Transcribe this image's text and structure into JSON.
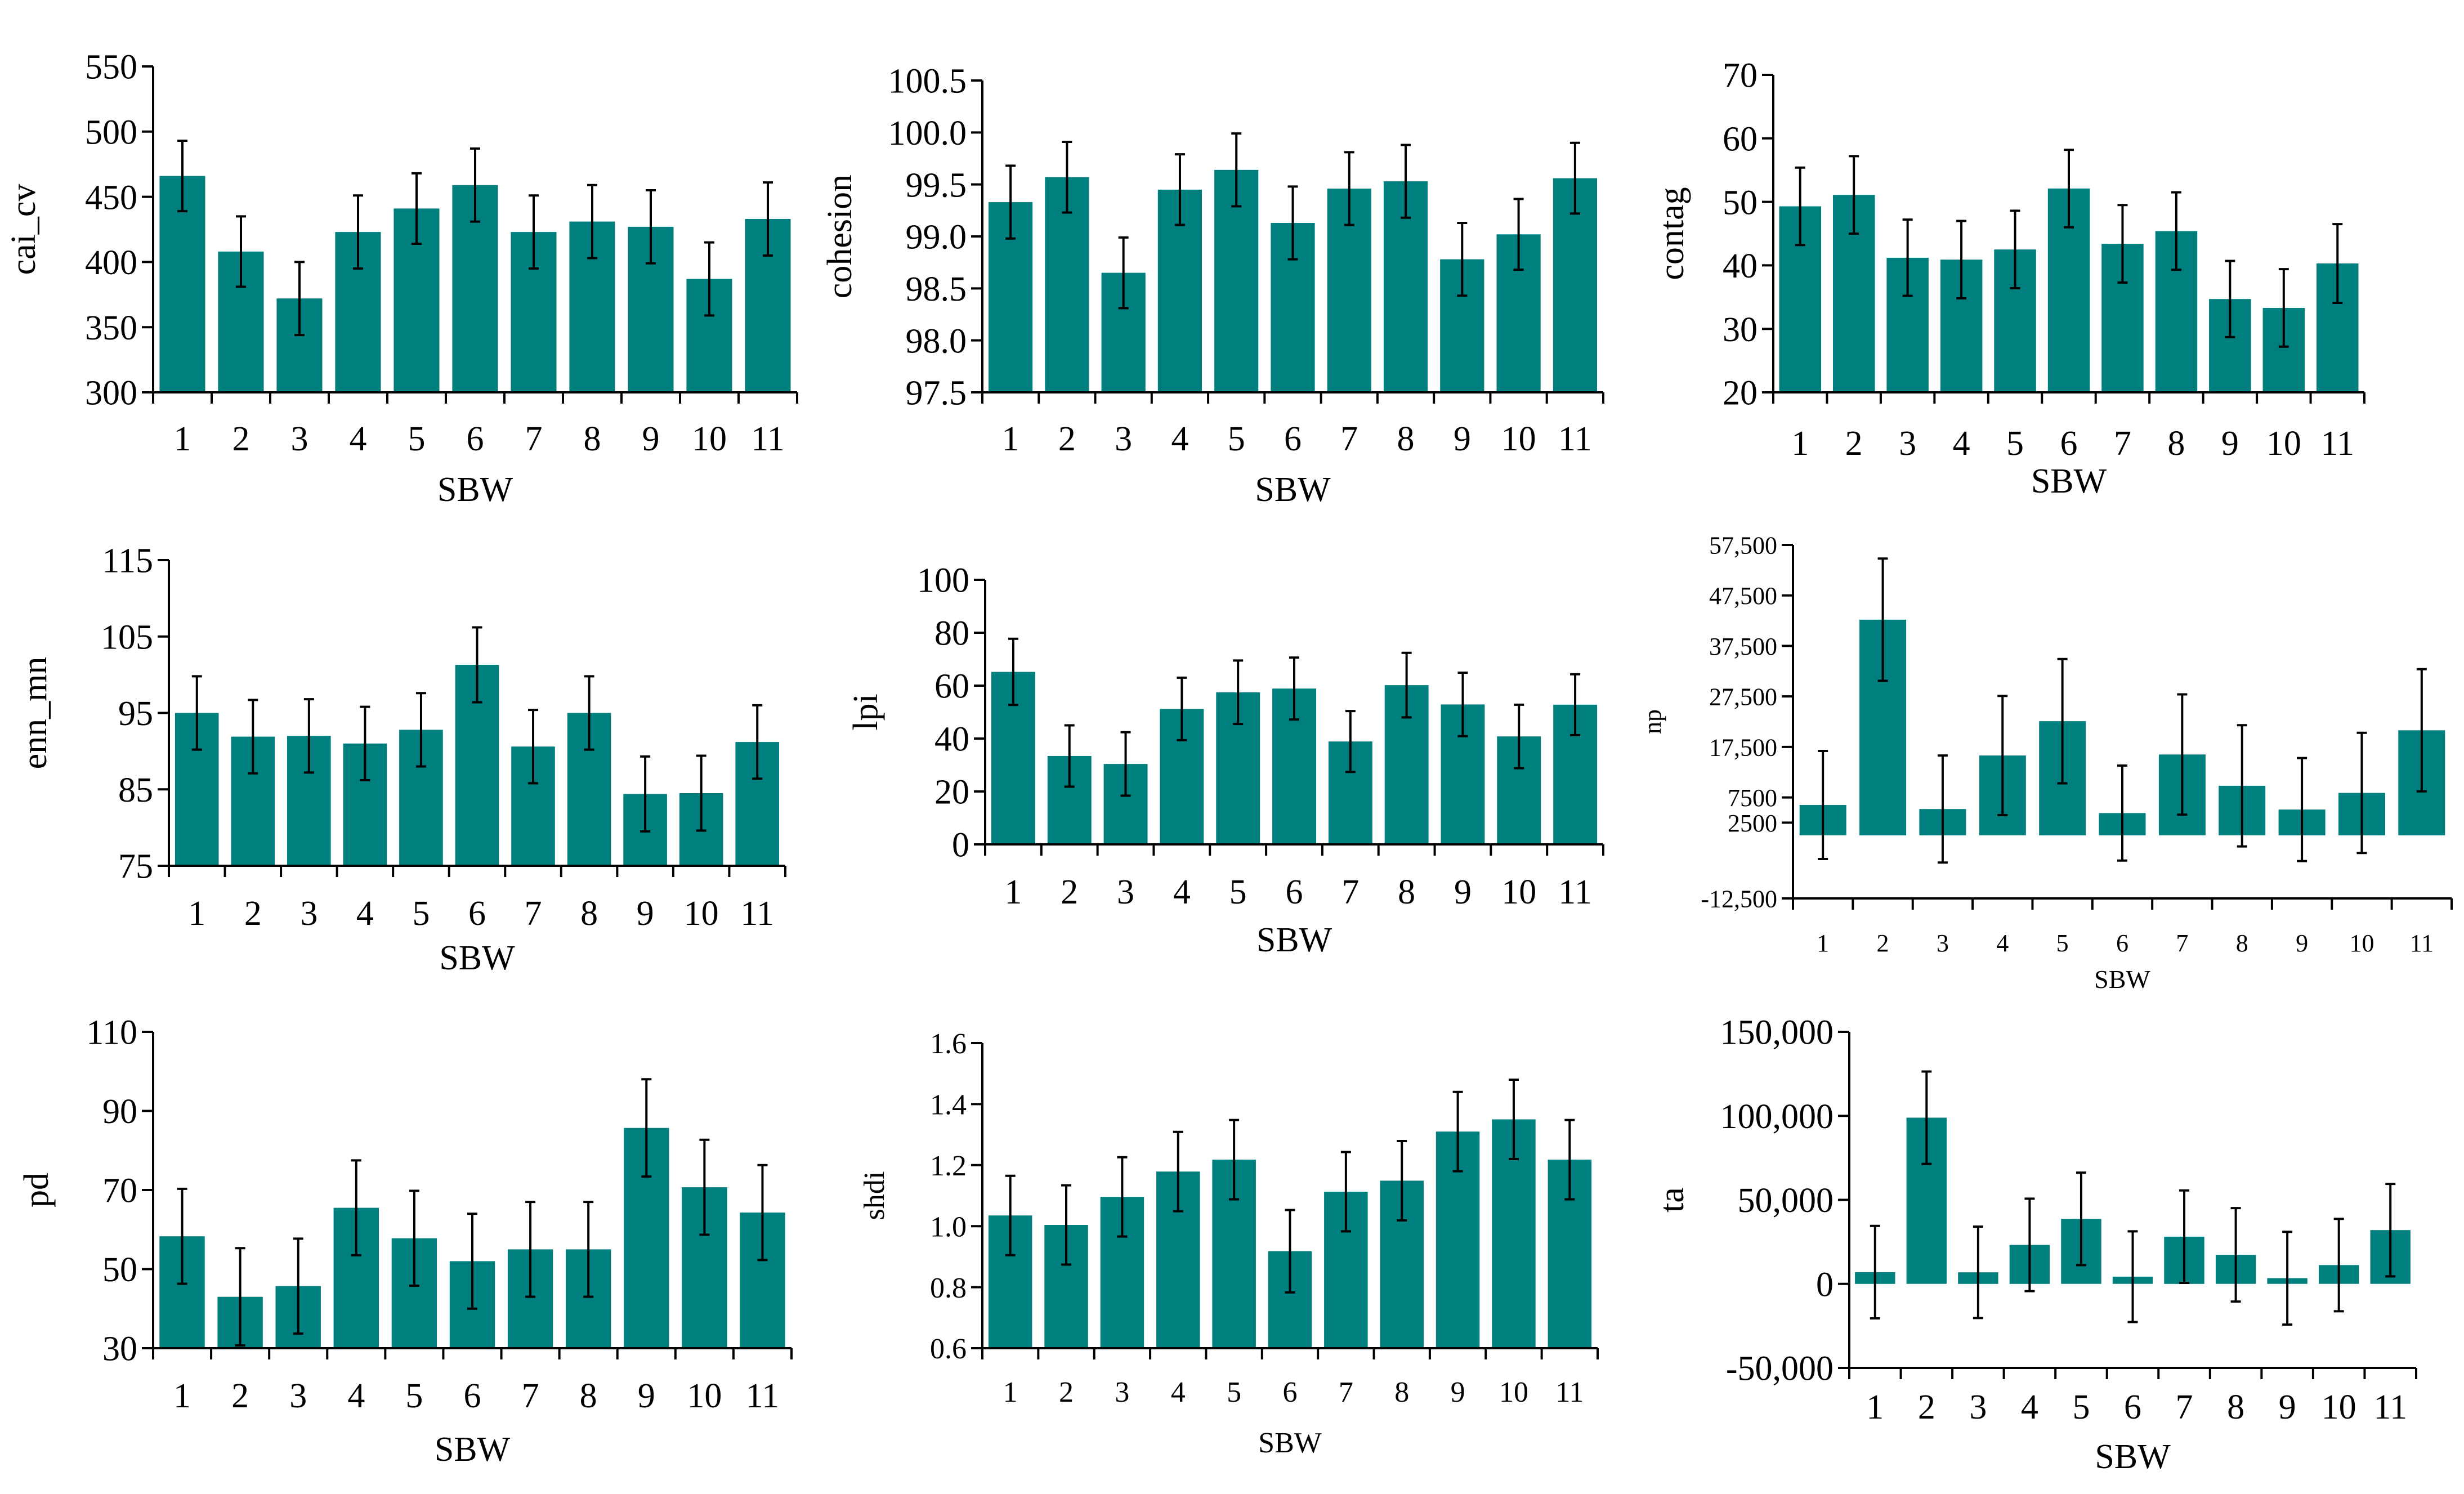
{
  "colors": {
    "bar": "#007f7f",
    "axis": "#000000",
    "text": "#000000"
  },
  "chart_data": [
    {
      "type": "bar",
      "title": "",
      "xlabel": "SBW",
      "ylabel": "cai_cv",
      "categories": [
        "1",
        "2",
        "3",
        "4",
        "5",
        "6",
        "7",
        "8",
        "9",
        "10",
        "11"
      ],
      "values": [
        466,
        408,
        372,
        423,
        441,
        459,
        423,
        431,
        427,
        387,
        433
      ],
      "error": [
        27,
        27,
        28,
        28,
        27,
        28,
        28,
        28,
        28,
        28,
        28
      ],
      "ylim": [
        300,
        550
      ],
      "yticks": [
        300,
        350,
        400,
        450,
        500,
        550
      ],
      "ytick_labels": [
        "300",
        "350",
        "400",
        "450",
        "500",
        "550"
      ],
      "grid": false
    },
    {
      "type": "bar",
      "title": "",
      "xlabel": "SBW",
      "ylabel": "cohesion",
      "categories": [
        "1",
        "2",
        "3",
        "4",
        "5",
        "6",
        "7",
        "8",
        "9",
        "10",
        "11"
      ],
      "values": [
        99.33,
        99.57,
        98.65,
        99.45,
        99.64,
        99.13,
        99.46,
        99.53,
        98.78,
        99.02,
        99.56
      ],
      "error": [
        0.35,
        0.34,
        0.34,
        0.34,
        0.35,
        0.35,
        0.35,
        0.35,
        0.35,
        0.34,
        0.34
      ],
      "ylim": [
        97.5,
        100.5
      ],
      "yticks": [
        97.5,
        98.0,
        98.5,
        99.0,
        99.5,
        100.0,
        100.5
      ],
      "ytick_labels": [
        "97.5",
        "98.0",
        "98.5",
        "99.0",
        "99.5",
        "100.0",
        "100.5"
      ],
      "grid": false
    },
    {
      "type": "bar",
      "title": "",
      "xlabel": "SBW",
      "ylabel": "contag",
      "categories": [
        "1",
        "2",
        "3",
        "4",
        "5",
        "6",
        "7",
        "8",
        "9",
        "10",
        "11"
      ],
      "values": [
        49.3,
        51.1,
        41.2,
        40.9,
        42.5,
        52.1,
        43.4,
        45.4,
        34.7,
        33.3,
        40.3
      ],
      "error": [
        6.1,
        6.1,
        6.0,
        6.1,
        6.1,
        6.1,
        6.1,
        6.1,
        6.0,
        6.1,
        6.2
      ],
      "ylim": [
        20,
        70
      ],
      "yticks": [
        20,
        30,
        40,
        50,
        60,
        70
      ],
      "ytick_labels": [
        "20",
        "30",
        "40",
        "50",
        "60",
        "70"
      ],
      "grid": false
    },
    {
      "type": "bar",
      "title": "",
      "xlabel": "SBW",
      "ylabel": "enn_mn",
      "categories": [
        "1",
        "2",
        "3",
        "4",
        "5",
        "6",
        "7",
        "8",
        "9",
        "10",
        "11"
      ],
      "values": [
        95.0,
        91.9,
        92.0,
        91.0,
        92.8,
        101.3,
        90.6,
        95.0,
        84.4,
        84.5,
        91.2
      ],
      "error": [
        4.8,
        4.8,
        4.8,
        4.8,
        4.8,
        4.9,
        4.8,
        4.8,
        4.9,
        4.9,
        4.8
      ],
      "ylim": [
        75,
        115
      ],
      "yticks": [
        75,
        85,
        95,
        105,
        115
      ],
      "ytick_labels": [
        "75",
        "85",
        "95",
        "105",
        "115"
      ],
      "grid": false
    },
    {
      "type": "bar",
      "title": "",
      "xlabel": "SBW",
      "ylabel": "lpi",
      "categories": [
        "1",
        "2",
        "3",
        "4",
        "5",
        "6",
        "7",
        "8",
        "9",
        "10",
        "11"
      ],
      "values": [
        65.2,
        33.4,
        30.4,
        51.2,
        57.5,
        58.9,
        38.9,
        60.2,
        52.9,
        40.8,
        52.8
      ],
      "error": [
        12.5,
        11.6,
        12.0,
        11.8,
        12.0,
        11.7,
        11.5,
        12.2,
        12.0,
        12.0,
        11.5
      ],
      "ylim": [
        0,
        100
      ],
      "yticks": [
        0,
        20,
        40,
        60,
        80,
        100
      ],
      "ytick_labels": [
        "0",
        "20",
        "40",
        "60",
        "80",
        "100"
      ],
      "grid": false
    },
    {
      "type": "bar",
      "title": "",
      "xlabel": "SBW",
      "ylabel": "np",
      "categories": [
        "1",
        "2",
        "3",
        "4",
        "5",
        "6",
        "7",
        "8",
        "9",
        "10",
        "11"
      ],
      "values": [
        6000,
        42700,
        5200,
        15800,
        22600,
        4400,
        16000,
        9800,
        5100,
        8400,
        20800
      ],
      "error": [
        10700,
        12100,
        10600,
        11800,
        12300,
        9400,
        11900,
        12000,
        10200,
        11900,
        12100
      ],
      "ylim": [
        -12500,
        57500
      ],
      "yticks": [
        -12500,
        2500,
        7500,
        17500,
        27500,
        37500,
        47500,
        57500
      ],
      "ytick_labels": [
        "-12,500",
        "2500",
        "7500",
        "17,500",
        "27,500",
        "37,500",
        "47,500",
        "57,500"
      ],
      "grid": false
    },
    {
      "type": "bar",
      "title": "",
      "xlabel": "SBW",
      "ylabel": "pd",
      "categories": [
        "1",
        "2",
        "3",
        "4",
        "5",
        "6",
        "7",
        "8",
        "9",
        "10",
        "11"
      ],
      "values": [
        58.3,
        43.0,
        45.7,
        65.5,
        57.8,
        52.0,
        55.0,
        55.0,
        85.7,
        70.7,
        64.3
      ],
      "error": [
        12.0,
        12.3,
        12.0,
        12.0,
        12.0,
        12.0,
        12.0,
        12.0,
        12.3,
        12.0,
        12.0
      ],
      "ylim": [
        30,
        110
      ],
      "yticks": [
        30,
        50,
        70,
        90,
        110
      ],
      "ytick_labels": [
        "30",
        "50",
        "70",
        "90",
        "110"
      ],
      "grid": false
    },
    {
      "type": "bar",
      "title": "",
      "xlabel": "SBW",
      "ylabel": "shdi",
      "categories": [
        "1",
        "2",
        "3",
        "4",
        "5",
        "6",
        "7",
        "8",
        "9",
        "10",
        "11"
      ],
      "values": [
        1.035,
        1.004,
        1.096,
        1.179,
        1.218,
        0.918,
        1.113,
        1.149,
        1.31,
        1.35,
        1.218
      ],
      "error": [
        0.13,
        0.13,
        0.13,
        0.13,
        0.13,
        0.135,
        0.13,
        0.13,
        0.13,
        0.13,
        0.13
      ],
      "ylim": [
        0.6,
        1.6
      ],
      "yticks": [
        0.6,
        0.8,
        1.0,
        1.2,
        1.4,
        1.6
      ],
      "ytick_labels": [
        "0.6",
        "0.8",
        "1.0",
        "1.2",
        "1.4",
        "1.6"
      ],
      "grid": false
    },
    {
      "type": "bar",
      "title": "",
      "xlabel": "SBW",
      "ylabel": "ta",
      "categories": [
        "1",
        "2",
        "3",
        "4",
        "5",
        "6",
        "7",
        "8",
        "9",
        "10",
        "11"
      ],
      "values": [
        7000,
        98900,
        6900,
        23200,
        38700,
        4300,
        28100,
        17300,
        3400,
        11200,
        32000
      ],
      "error": [
        27500,
        27500,
        27200,
        27500,
        27500,
        27000,
        27500,
        27800,
        27600,
        27500,
        27500
      ],
      "ylim": [
        -50000,
        150000
      ],
      "yticks": [
        -50000,
        0,
        50000,
        100000,
        150000
      ],
      "ytick_labels": [
        "-50,000",
        "0",
        "50,000",
        "100,000",
        "150,000"
      ],
      "grid": false
    }
  ]
}
